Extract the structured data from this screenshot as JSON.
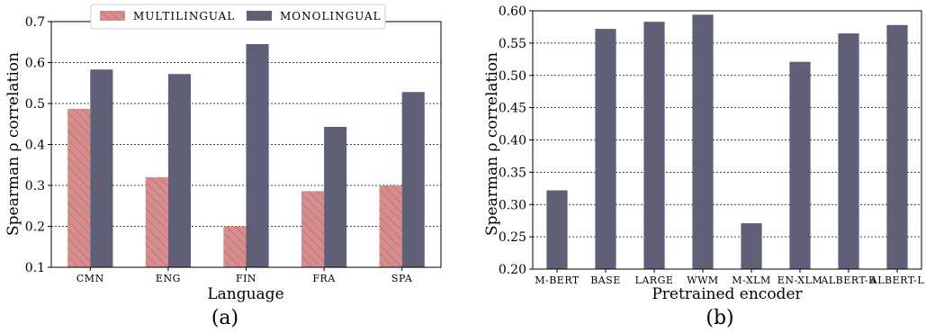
{
  "chart_data": [
    {
      "type": "bar",
      "panel_label": "(a)",
      "xlabel": "Language",
      "ylabel": "Spearman ρ correlation",
      "categories": [
        "CMN",
        "ENG",
        "FIN",
        "FRA",
        "SPA"
      ],
      "ylim": [
        0.1,
        0.7
      ],
      "yticks": [
        "0.1",
        "0.2",
        "0.3",
        "0.4",
        "0.5",
        "0.6",
        "0.7"
      ],
      "grid": "horizontal dashed",
      "legend_position": "top-center",
      "series": [
        {
          "name": "MULTILINGUAL",
          "color": "#e08a88",
          "hatch": true,
          "values": [
            0.487,
            0.32,
            0.2,
            0.286,
            0.3
          ]
        },
        {
          "name": "MONOLINGUAL",
          "color": "#5f6078",
          "hatch": false,
          "values": [
            0.583,
            0.572,
            0.645,
            0.443,
            0.528
          ]
        }
      ]
    },
    {
      "type": "bar",
      "panel_label": "(b)",
      "xlabel": "Pretrained encoder",
      "ylabel": "Spearman ρ correlation",
      "categories": [
        "M-BERT",
        "BASE",
        "LARGE",
        "WWM",
        "M-XLM",
        "EN-XLM",
        "ALBERT-B",
        "ALBERT-L"
      ],
      "ylim": [
        0.2,
        0.6
      ],
      "yticks": [
        "0.20",
        "0.25",
        "0.30",
        "0.35",
        "0.40",
        "0.45",
        "0.50",
        "0.55",
        "0.60"
      ],
      "grid": "horizontal dashed",
      "color": "#5f6078",
      "values": [
        0.322,
        0.572,
        0.583,
        0.594,
        0.271,
        0.521,
        0.565,
        0.578
      ]
    }
  ]
}
